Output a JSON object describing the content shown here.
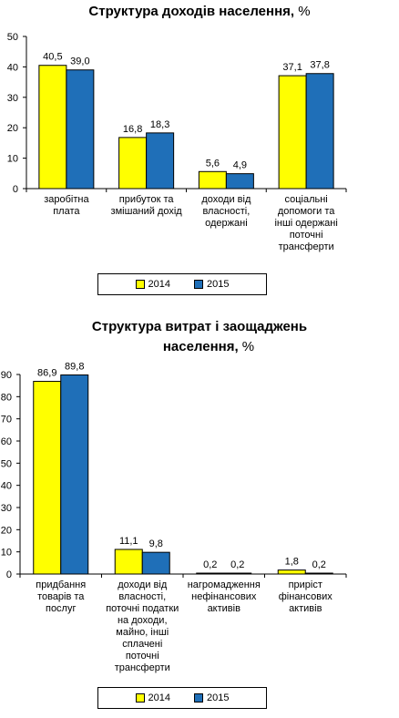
{
  "colors": {
    "s2014": "#ffff00",
    "s2015": "#1f6fb8",
    "edge": "#000000"
  },
  "charts": [
    {
      "title": "Структура доходів населення, %",
      "title_main": "Структура доходів населення,",
      "title_unit": " %",
      "legend": [
        "2014",
        "2015"
      ]
    },
    {
      "title_line1": "Структура витрат і заощаджень",
      "title_line2_main": "населення,",
      "title_unit": " %",
      "legend": [
        "2014",
        "2015"
      ]
    }
  ],
  "chart_data": [
    {
      "type": "bar",
      "title": "Структура доходів населення, %",
      "categories": [
        "заробітна плата",
        "прибуток та змішаний дохід",
        "доходи від власності, одержані",
        "соціальні допомоги та інші одержані поточні трансферти"
      ],
      "category_lines": [
        [
          "заробітна",
          "плата"
        ],
        [
          "прибуток та",
          "змішаний дохід"
        ],
        [
          "доходи від",
          "власності,",
          "одержані"
        ],
        [
          "соціальні",
          "допомоги та",
          "інші одержані",
          "поточні",
          "трансферти"
        ]
      ],
      "series": [
        {
          "name": "2014",
          "values": [
            40.5,
            16.8,
            5.6,
            37.1
          ],
          "labels": [
            "40,5",
            "16,8",
            "5,6",
            "37,1"
          ]
        },
        {
          "name": "2015",
          "values": [
            39.0,
            18.3,
            4.9,
            37.8
          ],
          "labels": [
            "39,0",
            "18,3",
            "4,9",
            "37,8"
          ]
        }
      ],
      "ylim": [
        0,
        50
      ],
      "yticks": [
        0,
        10,
        20,
        30,
        40,
        50
      ],
      "legend_position": "bottom",
      "grid": false
    },
    {
      "type": "bar",
      "title": "Структура витрат і заощаджень населення, %",
      "categories": [
        "придбання товарів та послуг",
        "доходи від власності, поточні податки на доходи, майно, інші сплачені поточні трансферти",
        "нагромадження нефінансових активів",
        "приріст фінансових активів"
      ],
      "category_lines": [
        [
          "придбання",
          "товарів та",
          "послуг"
        ],
        [
          "доходи від",
          "власності,",
          "поточні податки",
          "на доходи,",
          "майно, інші",
          "сплачені",
          "поточні",
          "трансферти"
        ],
        [
          "нагромадження",
          "нефінансових",
          "активів"
        ],
        [
          "приріст",
          "фінансових",
          "активів"
        ]
      ],
      "series": [
        {
          "name": "2014",
          "values": [
            86.9,
            11.1,
            0.2,
            1.8
          ],
          "labels": [
            "86,9",
            "11,1",
            "0,2",
            "1,8"
          ]
        },
        {
          "name": "2015",
          "values": [
            89.8,
            9.8,
            0.2,
            0.2
          ],
          "labels": [
            "89,8",
            "9,8",
            "0,2",
            "0,2"
          ]
        }
      ],
      "ylim": [
        0,
        90
      ],
      "yticks": [
        0,
        10,
        20,
        30,
        40,
        50,
        60,
        70,
        80,
        90
      ],
      "legend_position": "bottom",
      "grid": false
    }
  ]
}
